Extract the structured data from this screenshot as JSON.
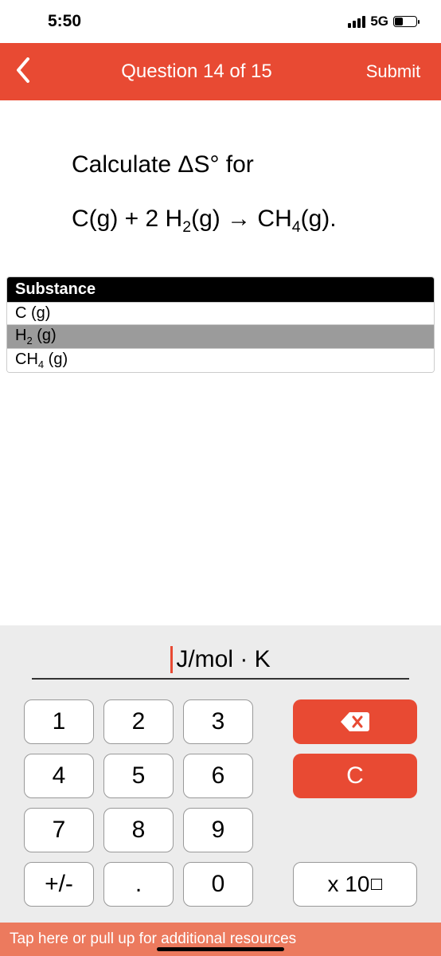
{
  "status": {
    "time": "5:50",
    "network": "5G"
  },
  "header": {
    "title": "Question 14 of 15",
    "submit": "Submit"
  },
  "question": {
    "prompt_prefix": "Calculate ΔS° for",
    "equation_html": "C(g) + 2 H<sub>2</sub>(g) → CH<sub>4</sub>(g)."
  },
  "table": {
    "header": "Substance",
    "rows_html": [
      "C (g)",
      "H<sub>2</sub> (g)",
      "CH<sub>4</sub> (g)"
    ],
    "row_backgrounds": [
      "#ffffff",
      "#9b9b9b",
      "#ffffff"
    ]
  },
  "input": {
    "unit": "J/mol · K"
  },
  "keypad": {
    "keys": [
      "1",
      "2",
      "3",
      "4",
      "5",
      "6",
      "7",
      "8",
      "9",
      "+/-",
      ".",
      "0"
    ],
    "clear": "C",
    "exponent_prefix": "x 10"
  },
  "resources_hint": "Tap here or pull up for additional resources",
  "colors": {
    "accent": "#e84a33",
    "accent_light": "#ec7a5e",
    "panel_bg": "#ececec"
  }
}
